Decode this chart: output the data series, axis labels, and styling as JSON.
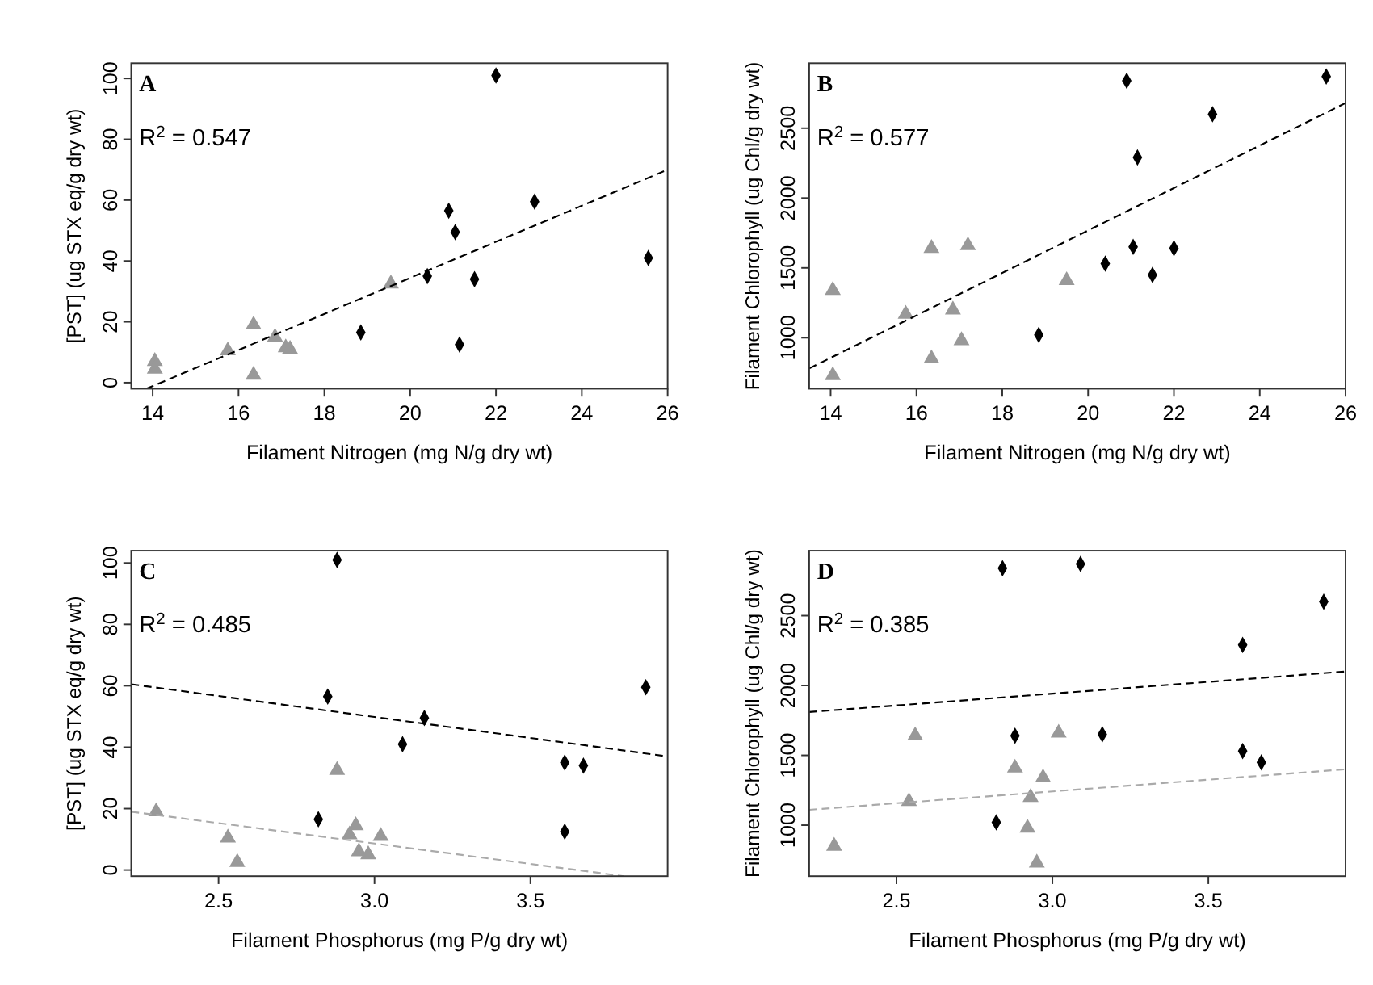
{
  "chart_data": [
    {
      "type": "scatter",
      "title": "A",
      "xlabel": "Filament Nitrogen (mg N/g dry wt)",
      "ylabel": "[PST] (ug STX eq/g dry wt)",
      "xlim": [
        13.5,
        26
      ],
      "ylim": [
        -2,
        105
      ],
      "xticks": [
        14,
        16,
        18,
        20,
        22,
        24,
        26
      ],
      "yticks": [
        0,
        20,
        40,
        60,
        80,
        100
      ],
      "grid": false,
      "annotations": [
        "R$^{2}$ = 0.547"
      ],
      "series": [
        {
          "type": "scatter",
          "marker": "diamond",
          "color": "#000000",
          "x": [
            18.85,
            20.4,
            20.9,
            21.05,
            21.15,
            21.5,
            22.0,
            22.9,
            25.55
          ],
          "values": [
            16.5,
            35,
            56.5,
            49.5,
            12.5,
            34,
            101,
            59.5,
            41
          ]
        },
        {
          "type": "scatter",
          "marker": "triangle",
          "color": "#999999",
          "x": [
            14.05,
            14.05,
            15.75,
            16.35,
            16.35,
            16.85,
            17.1,
            17.2,
            19.55
          ],
          "values": [
            7,
            4.5,
            10.5,
            19,
            2.5,
            15,
            11.5,
            11,
            32.5
          ]
        },
        {
          "type": "line",
          "line_style": "dashed",
          "color": "#000000",
          "x": [
            13.85,
            26
          ],
          "values": [
            -2,
            70
          ]
        }
      ]
    },
    {
      "type": "scatter",
      "title": "B",
      "xlabel": "Filament Nitrogen (mg N/g dry wt)",
      "ylabel": "Filament Chlorophyll (ug Chl/g dry wt)",
      "xlim": [
        13.5,
        26
      ],
      "ylim": [
        635,
        2965
      ],
      "xticks": [
        14,
        16,
        18,
        20,
        22,
        24,
        26
      ],
      "yticks": [
        1000,
        1500,
        2000,
        2500
      ],
      "grid": false,
      "annotations": [
        "R$^{2}$ = 0.577"
      ],
      "series": [
        {
          "type": "scatter",
          "marker": "diamond",
          "color": "#000000",
          "x": [
            18.85,
            20.4,
            20.9,
            21.05,
            21.15,
            21.5,
            22.0,
            22.9,
            25.55
          ],
          "values": [
            1020,
            1530,
            2840,
            1650,
            2290,
            1450,
            1640,
            2600,
            2870
          ]
        },
        {
          "type": "scatter",
          "marker": "triangle",
          "color": "#999999",
          "x": [
            14.05,
            14.05,
            15.75,
            16.35,
            16.35,
            16.85,
            17.05,
            17.2,
            19.5
          ],
          "values": [
            1340,
            730,
            1170,
            1640,
            850,
            1200,
            980,
            1660,
            1410
          ]
        },
        {
          "type": "line",
          "line_style": "dashed",
          "color": "#000000",
          "x": [
            13.5,
            26
          ],
          "values": [
            780,
            2680
          ]
        }
      ]
    },
    {
      "type": "scatter",
      "title": "C",
      "xlabel": "Filament Phosphorus (mg P/g dry wt)",
      "ylabel": "[PST] (ug STX eq/g dry wt)",
      "xlim": [
        2.22,
        3.94
      ],
      "ylim": [
        -2,
        104
      ],
      "xticks": [
        2.5,
        {
          "value": 3,
          "label": "3.0"
        },
        3.5
      ],
      "yticks": [
        0,
        20,
        40,
        60,
        80,
        100
      ],
      "grid": false,
      "annotations": [
        "R$^{2}$ = 0.485"
      ],
      "series": [
        {
          "type": "scatter",
          "marker": "diamond",
          "color": "#000000",
          "x": [
            2.82,
            2.85,
            2.88,
            3.09,
            3.16,
            3.61,
            3.61,
            3.67,
            3.87
          ],
          "values": [
            16.5,
            56.5,
            101,
            41,
            49.5,
            35,
            12.5,
            34,
            59.5
          ]
        },
        {
          "type": "scatter",
          "marker": "triangle",
          "color": "#999999",
          "x": [
            2.3,
            2.53,
            2.56,
            2.88,
            2.92,
            2.94,
            2.95,
            2.98,
            3.02
          ],
          "values": [
            19,
            10.5,
            2.5,
            32.5,
            11.5,
            14.5,
            6,
            5,
            11
          ]
        },
        {
          "type": "line",
          "line_style": "dashed",
          "color": "#000000",
          "x": [
            2.22,
            3.94
          ],
          "values": [
            60.5,
            37
          ]
        },
        {
          "type": "line",
          "line_style": "dashed",
          "color": "#aaaaaa",
          "x": [
            2.22,
            3.8
          ],
          "values": [
            19,
            -2
          ]
        }
      ]
    },
    {
      "type": "scatter",
      "title": "D",
      "xlabel": "Filament Phosphorus (mg P/g dry wt)",
      "ylabel": "Filament Chlorophyll (ug Chl/g dry wt)",
      "xlim": [
        2.22,
        3.94
      ],
      "ylim": [
        635,
        2965
      ],
      "xticks": [
        2.5,
        {
          "value": 3,
          "label": "3.0"
        },
        3.5
      ],
      "yticks": [
        1000,
        1500,
        2000,
        2500
      ],
      "grid": false,
      "annotations": [
        "R$^{2}$ = 0.385"
      ],
      "series": [
        {
          "type": "scatter",
          "marker": "diamond",
          "color": "#000000",
          "x": [
            2.82,
            2.84,
            2.88,
            3.09,
            3.16,
            3.61,
            3.61,
            3.67,
            3.87
          ],
          "values": [
            1020,
            2840,
            1640,
            2870,
            1650,
            2290,
            1530,
            1450,
            2600
          ]
        },
        {
          "type": "scatter",
          "marker": "triangle",
          "color": "#999999",
          "x": [
            2.3,
            2.54,
            2.56,
            2.88,
            2.92,
            2.93,
            2.95,
            2.97,
            3.02
          ],
          "values": [
            850,
            1170,
            1640,
            1410,
            980,
            1200,
            730,
            1340,
            1660
          ]
        },
        {
          "type": "line",
          "line_style": "dashed",
          "color": "#000000",
          "x": [
            2.22,
            3.94
          ],
          "values": [
            1810,
            2100
          ]
        },
        {
          "type": "line",
          "line_style": "dashed",
          "color": "#aaaaaa",
          "x": [
            2.22,
            3.94
          ],
          "values": [
            1110,
            1400
          ]
        }
      ]
    }
  ]
}
